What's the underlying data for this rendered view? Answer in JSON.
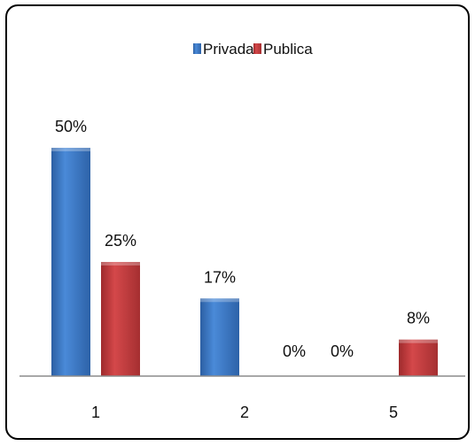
{
  "chart_data": {
    "type": "bar",
    "title": "",
    "xlabel": "",
    "ylabel": "",
    "categories": [
      "1",
      "2",
      "5"
    ],
    "series": [
      {
        "name": "Privada",
        "values": [
          50,
          17,
          0
        ],
        "labels": [
          "50%",
          "17%",
          "0%"
        ],
        "color": "#3B78C8"
      },
      {
        "name": "Publica",
        "values": [
          25,
          0,
          8
        ],
        "labels": [
          "25%",
          "0%",
          "8%"
        ],
        "color": "#C0393B"
      }
    ],
    "ylim": [
      0,
      60
    ],
    "grid": false,
    "legend": "top-center"
  }
}
